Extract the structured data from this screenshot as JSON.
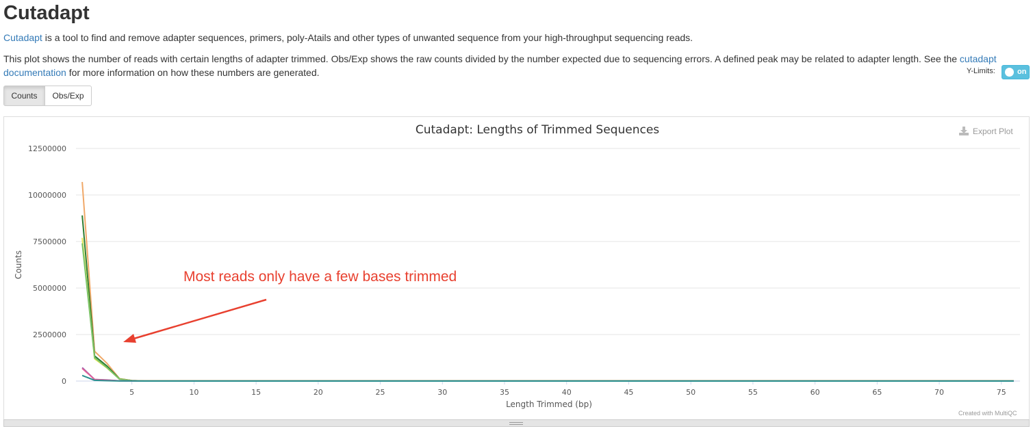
{
  "header": {
    "title": "Cutadapt"
  },
  "intro": {
    "link_text": "Cutadapt",
    "text": " is a tool to find and remove adapter sequences, primers, poly-Atails and other types of unwanted sequence from your high-throughput sequencing reads."
  },
  "description": {
    "text_before": "This plot shows the number of reads with certain lengths of adapter trimmed. Obs/Exp shows the raw counts divided by the number expected due to sequencing errors. A defined peak may be related to adapter length. See the ",
    "link_text": "cutadapt documentation",
    "text_after": " for more information on how these numbers are generated."
  },
  "ylimits": {
    "label": "Y-Limits:",
    "state": "on"
  },
  "tabs": [
    {
      "label": "Counts",
      "active": true
    },
    {
      "label": "Obs/Exp",
      "active": false
    }
  ],
  "export": {
    "label": "Export Plot",
    "icon": "download-icon"
  },
  "credits": "Created with MultiQC",
  "annotation": {
    "text": "Most reads only have a few bases trimmed",
    "color": "#e8402f"
  },
  "chart_data": {
    "type": "line",
    "title": "Cutadapt: Lengths of Trimmed Sequences",
    "xlabel": "Length Trimmed (bp)",
    "ylabel": "Counts",
    "xlim": [
      0.5,
      76.5
    ],
    "ylim": [
      0,
      12500000
    ],
    "xticks": [
      5,
      10,
      15,
      20,
      25,
      30,
      35,
      40,
      45,
      50,
      55,
      60,
      65,
      70,
      75
    ],
    "yticks": [
      0,
      2500000,
      5000000,
      7500000,
      10000000,
      12500000
    ],
    "ytick_labels": [
      "0",
      "2500000",
      "5000000",
      "7500000",
      "10000000",
      "12500000"
    ],
    "grid": true,
    "series": [
      {
        "color": "#f0a868",
        "x": [
          1,
          2,
          3,
          4,
          5,
          6,
          67,
          76
        ],
        "values": [
          10700000,
          1600000,
          950000,
          130000,
          30000,
          8000,
          15000,
          10000
        ]
      },
      {
        "color": "#2e7d32",
        "x": [
          1,
          2,
          3,
          4,
          5,
          6,
          76
        ],
        "values": [
          8900000,
          1350000,
          800000,
          120000,
          25000,
          6000,
          6000
        ]
      },
      {
        "color": "#e6e655",
        "x": [
          1,
          2,
          3,
          4,
          5,
          6,
          76
        ],
        "values": [
          7700000,
          1200000,
          700000,
          110000,
          22000,
          5000,
          5000
        ]
      },
      {
        "color": "#7bc36a",
        "x": [
          1,
          2,
          3,
          4,
          5,
          6,
          76
        ],
        "values": [
          7400000,
          1250000,
          720000,
          100000,
          20000,
          5000,
          5000
        ]
      },
      {
        "color": "#8e5aa8",
        "x": [
          1,
          2,
          3,
          4,
          5,
          6,
          76
        ],
        "values": [
          720000,
          90000,
          60000,
          15000,
          5000,
          2000,
          2000
        ]
      },
      {
        "color": "#e0609a",
        "x": [
          1,
          2,
          3,
          4,
          5,
          6,
          76
        ],
        "values": [
          680000,
          80000,
          50000,
          12000,
          4000,
          1500,
          1500
        ]
      },
      {
        "color": "#2a8f8f",
        "x": [
          1,
          2,
          3,
          4,
          5,
          6,
          76
        ],
        "values": [
          300000,
          40000,
          20000,
          5000,
          2000,
          1000,
          1000
        ]
      }
    ]
  }
}
